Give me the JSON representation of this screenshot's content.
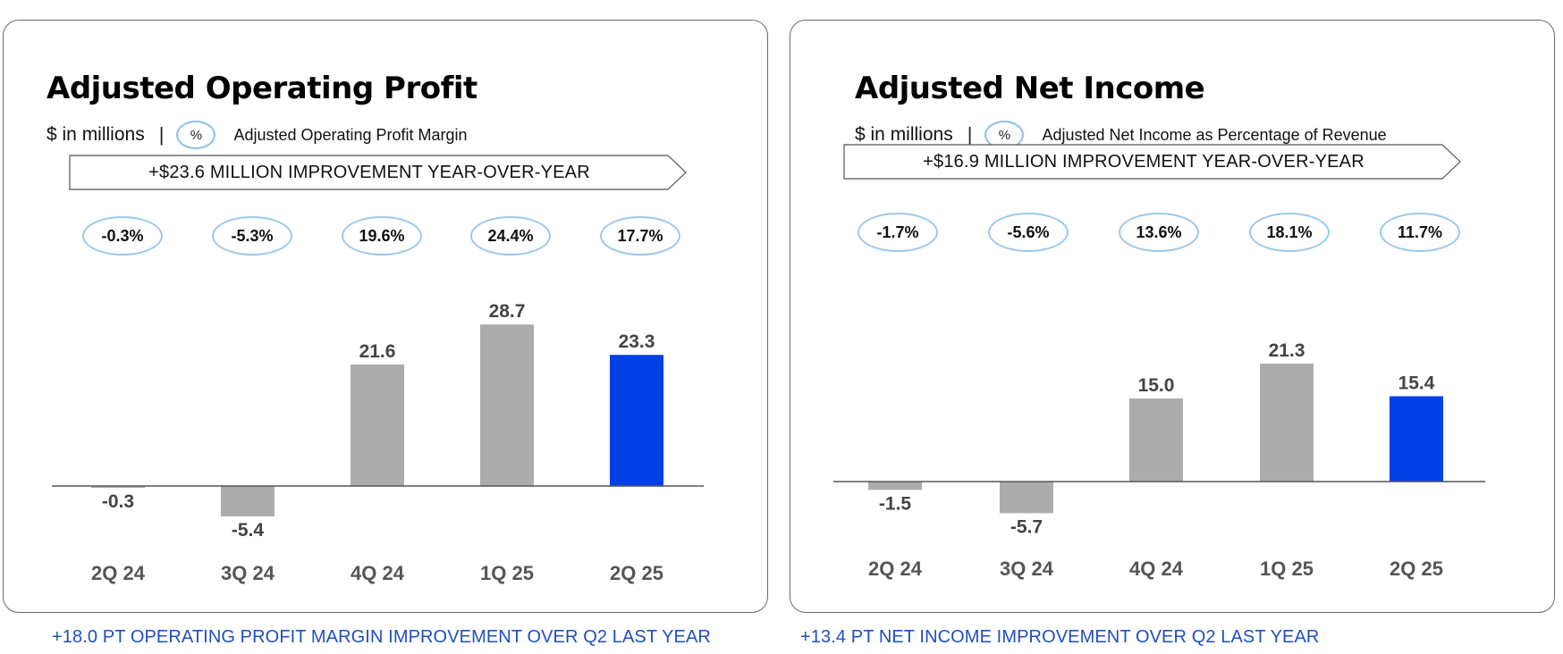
{
  "panels": [
    {
      "title": "Adjusted Operating Profit",
      "units": "$ in millions",
      "separator": "|",
      "pct_icon": "%",
      "margin_label": "Adjusted Operating Profit Margin",
      "banner": "+$23.6 MILLION IMPROVEMENT YEAR-OVER-YEAR",
      "margins": [
        "-0.3%",
        "-5.3%",
        "19.6%",
        "24.4%",
        "17.7%"
      ],
      "footer": "+18.0 PT OPERATING PROFIT MARGIN IMPROVEMENT OVER Q2 LAST YEAR"
    },
    {
      "title": "Adjusted Net Income",
      "units": "$ in millions",
      "separator": "|",
      "pct_icon": "%",
      "margin_label": "Adjusted Net Income as Percentage of Revenue",
      "banner": "+$16.9 MILLION IMPROVEMENT YEAR-OVER-YEAR",
      "margins": [
        "-1.7%",
        "-5.6%",
        "13.6%",
        "18.1%",
        "11.7%"
      ],
      "footer": "+13.4 PT NET INCOME IMPROVEMENT OVER Q2 LAST YEAR"
    }
  ],
  "colors": {
    "bar_default": "#acacac",
    "bar_highlight": "#0041e6",
    "ellipse_border": "#9cc7ee",
    "footer_text": "#1f4fbf",
    "axis": "#555555"
  },
  "chart_data": [
    {
      "type": "bar",
      "title": "Adjusted Operating Profit",
      "categories": [
        "2Q 24",
        "3Q 24",
        "4Q 24",
        "1Q 25",
        "2Q 25"
      ],
      "values": [
        -0.3,
        -5.4,
        21.6,
        28.7,
        23.3
      ],
      "value_labels": [
        "-0.3",
        "-5.4",
        "21.6",
        "28.7",
        "23.3"
      ],
      "highlight_index": 4,
      "ylabel": "$ in millions",
      "grid": false,
      "legend": "none"
    },
    {
      "type": "bar",
      "title": "Adjusted Net Income",
      "categories": [
        "2Q 24",
        "3Q 24",
        "4Q 24",
        "1Q 25",
        "2Q 25"
      ],
      "values": [
        -1.5,
        -5.7,
        15.0,
        21.3,
        15.4
      ],
      "value_labels": [
        "-1.5",
        "-5.7",
        "15.0",
        "21.3",
        "15.4"
      ],
      "highlight_index": 4,
      "ylabel": "$ in millions",
      "grid": false,
      "legend": "none"
    }
  ]
}
